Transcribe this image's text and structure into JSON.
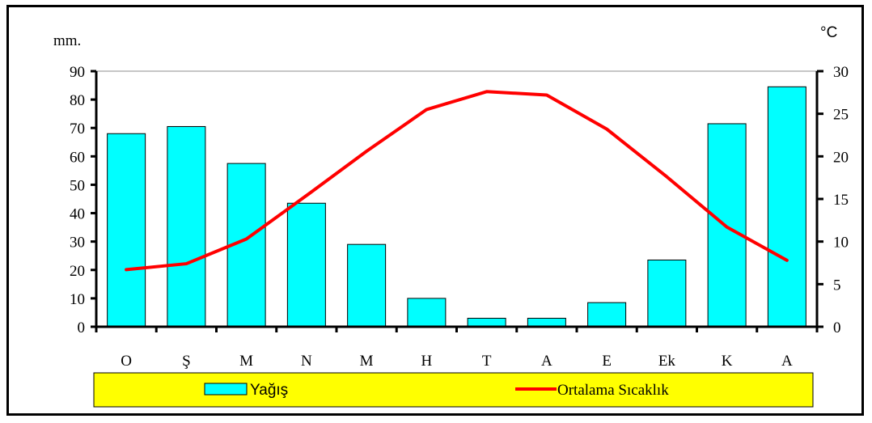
{
  "chart_data": {
    "type": "bar",
    "categories": [
      "O",
      "Ş",
      "M",
      "N",
      "M",
      "H",
      "T",
      "A",
      "E",
      "Ek",
      "K",
      "A"
    ],
    "series": [
      {
        "name": "Yağış",
        "type": "bar",
        "axis": "left",
        "color": "#00FFFF",
        "values": [
          68,
          70.5,
          57.5,
          43.5,
          29,
          10,
          3,
          3,
          8.5,
          23.5,
          71.5,
          84.5
        ]
      },
      {
        "name": "Ortalama Sıcaklık",
        "type": "line",
        "axis": "right",
        "color": "#FF0000",
        "values": [
          6.7,
          7.4,
          10.3,
          15.4,
          20.6,
          25.5,
          27.6,
          27.2,
          23.2,
          17.6,
          11.7,
          7.8
        ]
      }
    ],
    "ylabel": "mm.",
    "y2label": "°C",
    "ylim": [
      0,
      90
    ],
    "y2lim": [
      0,
      30
    ],
    "yticks": [
      "0",
      "10",
      "20",
      "30",
      "40",
      "50",
      "60",
      "70",
      "80",
      "90"
    ],
    "y2ticks": [
      "0",
      "5",
      "10",
      "15",
      "20",
      "25",
      "30"
    ],
    "legend": {
      "position": "bottom",
      "background": "#FFFF00"
    },
    "grid": false
  }
}
